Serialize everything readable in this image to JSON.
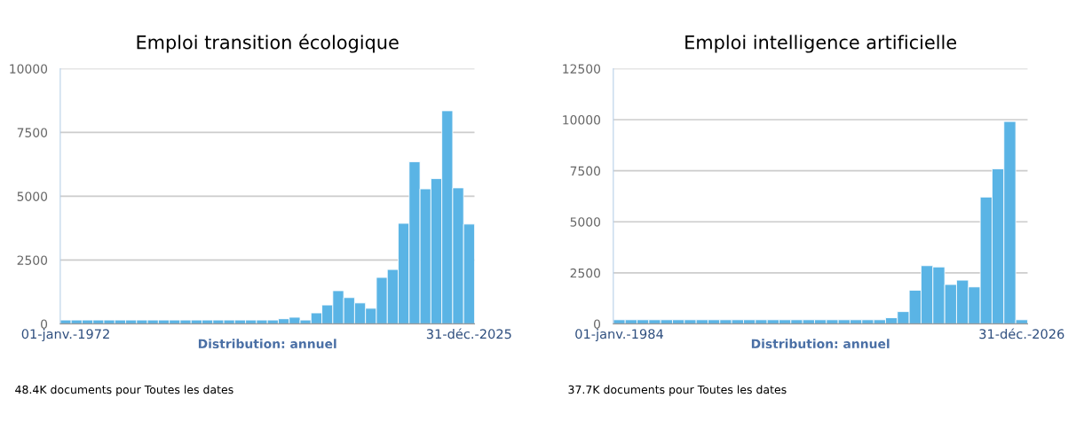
{
  "chart_data": [
    {
      "type": "bar",
      "title": "Emploi transition écologique",
      "xlabel": "Distribution: annuel",
      "annotations": [
        "48.4K documents pour Toutes les dates"
      ],
      "categories": [
        "01-janv.-1972",
        null,
        null,
        null,
        null,
        null,
        null,
        null,
        null,
        null,
        null,
        null,
        null,
        null,
        null,
        null,
        null,
        null,
        null,
        null,
        null,
        null,
        null,
        null,
        null,
        null,
        null,
        null,
        null,
        null,
        null,
        null,
        null,
        null,
        null,
        null,
        null,
        "31-déc.-2025"
      ],
      "values": [
        150,
        150,
        150,
        150,
        150,
        150,
        150,
        150,
        150,
        150,
        150,
        150,
        150,
        150,
        150,
        150,
        150,
        150,
        150,
        150,
        200,
        260,
        150,
        430,
        740,
        1300,
        1030,
        820,
        610,
        1820,
        2130,
        3940,
        6350,
        5290,
        5690,
        8350,
        5330,
        3910
      ],
      "color": "#5ab4e5",
      "ylim": [
        0,
        10000
      ],
      "yticks": [
        0,
        2500,
        5000,
        7500,
        10000
      ],
      "grid": "y"
    },
    {
      "type": "bar",
      "title": "Emploi intelligence artificielle",
      "xlabel": "Distribution: annuel",
      "annotations": [
        "37.7K documents pour Toutes les dates"
      ],
      "categories": [
        "01-janv.-1984",
        null,
        null,
        null,
        null,
        null,
        null,
        null,
        null,
        null,
        null,
        null,
        null,
        null,
        null,
        null,
        null,
        null,
        null,
        null,
        null,
        null,
        null,
        null,
        null,
        null,
        null,
        null,
        null,
        null,
        null,
        null,
        null,
        null,
        "31-déc.-2026"
      ],
      "values": [
        200,
        200,
        200,
        200,
        200,
        200,
        200,
        200,
        200,
        200,
        200,
        200,
        200,
        200,
        200,
        200,
        200,
        200,
        200,
        200,
        200,
        200,
        200,
        300,
        600,
        1650,
        2850,
        2790,
        1930,
        2140,
        1810,
        6210,
        7590,
        9910,
        200
      ],
      "color": "#5ab4e5",
      "ylim": [
        0,
        12500
      ],
      "yticks": [
        0,
        2500,
        5000,
        7500,
        10000,
        12500
      ],
      "grid": "y"
    }
  ]
}
